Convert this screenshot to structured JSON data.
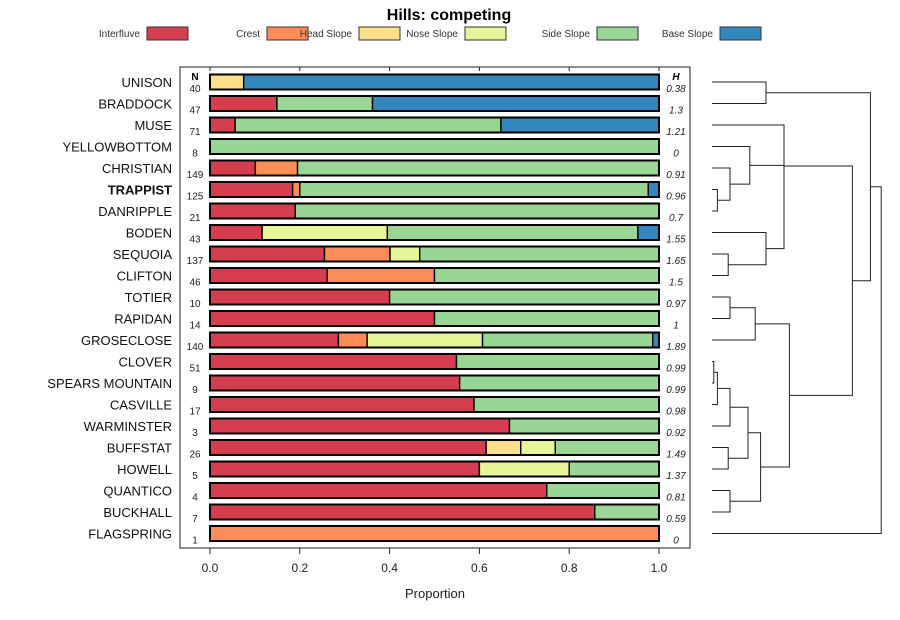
{
  "chart_data": {
    "type": "bar",
    "subtype": "stacked-horizontal-proportion",
    "title": "Hills: competing",
    "xlabel": "Proportion",
    "ylabel": "",
    "xlim": [
      0,
      1
    ],
    "x_ticks": [
      "0.0",
      "0.2",
      "0.4",
      "0.6",
      "0.8",
      "1.0"
    ],
    "x_tick_values": [
      0,
      0.2,
      0.4,
      0.6,
      0.8,
      1.0
    ],
    "n_header": "N",
    "h_header": "H",
    "legend_position": "top",
    "series": [
      {
        "name": "Interfluve",
        "color": "#D53E4F"
      },
      {
        "name": "Crest",
        "color": "#FC8D59"
      },
      {
        "name": "Head Slope",
        "color": "#FEE08B"
      },
      {
        "name": "Nose Slope",
        "color": "#E6F598"
      },
      {
        "name": "Side Slope",
        "color": "#99D594"
      },
      {
        "name": "Base Slope",
        "color": "#3288BD"
      }
    ],
    "categories": [
      "UNISON",
      "BRADDOCK",
      "MUSE",
      "YELLOWBOTTOM",
      "CHRISTIAN",
      "TRAPPIST",
      "DANRIPPLE",
      "BODEN",
      "SEQUOIA",
      "CLIFTON",
      "TOTIER",
      "RAPIDAN",
      "GROSECLOSE",
      "CLOVER",
      "SPEARS MOUNTAIN",
      "CASVILLE",
      "WARMINSTER",
      "BUFFSTAT",
      "HOWELL",
      "QUANTICO",
      "BUCKHALL",
      "FLAGSPRING"
    ],
    "highlight": "TRAPPIST",
    "rows": [
      {
        "label": "UNISON",
        "n": "40",
        "h": "0.38",
        "values": [
          0,
          0,
          0.075,
          0,
          0,
          0.925
        ]
      },
      {
        "label": "BRADDOCK",
        "n": "47",
        "h": "1.3",
        "values": [
          0.149,
          0,
          0,
          0,
          0.213,
          0.638
        ]
      },
      {
        "label": "MUSE",
        "n": "71",
        "h": "1.21",
        "values": [
          0.056,
          0,
          0,
          0,
          0.592,
          0.352
        ]
      },
      {
        "label": "YELLOWBOTTOM",
        "n": "8",
        "h": "0",
        "values": [
          0,
          0,
          0,
          0,
          1.0,
          0
        ]
      },
      {
        "label": "CHRISTIAN",
        "n": "149",
        "h": "0.91",
        "values": [
          0.101,
          0.094,
          0,
          0,
          0.805,
          0
        ]
      },
      {
        "label": "TRAPPIST",
        "n": "125",
        "h": "0.96",
        "values": [
          0.184,
          0.016,
          0,
          0,
          0.776,
          0.024
        ]
      },
      {
        "label": "DANRIPPLE",
        "n": "21",
        "h": "0.7",
        "values": [
          0.19,
          0,
          0,
          0,
          0.81,
          0
        ]
      },
      {
        "label": "BODEN",
        "n": "43",
        "h": "1.55",
        "values": [
          0.116,
          0,
          0,
          0.279,
          0.558,
          0.047
        ]
      },
      {
        "label": "SEQUOIA",
        "n": "137",
        "h": "1.65",
        "values": [
          0.255,
          0.146,
          0,
          0.066,
          0.533,
          0
        ]
      },
      {
        "label": "CLIFTON",
        "n": "46",
        "h": "1.5",
        "values": [
          0.261,
          0.239,
          0,
          0,
          0.5,
          0
        ]
      },
      {
        "label": "TOTIER",
        "n": "10",
        "h": "0.97",
        "values": [
          0.4,
          0,
          0,
          0,
          0.6,
          0
        ]
      },
      {
        "label": "RAPIDAN",
        "n": "14",
        "h": "1",
        "values": [
          0.5,
          0,
          0,
          0,
          0.5,
          0
        ]
      },
      {
        "label": "GROSECLOSE",
        "n": "140",
        "h": "1.89",
        "values": [
          0.286,
          0.064,
          0,
          0.257,
          0.379,
          0.014
        ]
      },
      {
        "label": "CLOVER",
        "n": "51",
        "h": "0.99",
        "values": [
          0.549,
          0,
          0,
          0,
          0.451,
          0
        ]
      },
      {
        "label": "SPEARS MOUNTAIN",
        "n": "9",
        "h": "0.99",
        "values": [
          0.556,
          0,
          0,
          0,
          0.444,
          0
        ]
      },
      {
        "label": "CASVILLE",
        "n": "17",
        "h": "0.98",
        "values": [
          0.588,
          0,
          0,
          0,
          0.412,
          0
        ]
      },
      {
        "label": "WARMINSTER",
        "n": "3",
        "h": "0.92",
        "values": [
          0.667,
          0,
          0,
          0,
          0.333,
          0
        ]
      },
      {
        "label": "BUFFSTAT",
        "n": "26",
        "h": "1.49",
        "values": [
          0.615,
          0,
          0.077,
          0.077,
          0.231,
          0
        ]
      },
      {
        "label": "HOWELL",
        "n": "5",
        "h": "1.37",
        "values": [
          0.6,
          0,
          0,
          0.2,
          0.2,
          0
        ]
      },
      {
        "label": "QUANTICO",
        "n": "4",
        "h": "0.81",
        "values": [
          0.75,
          0,
          0,
          0,
          0.25,
          0
        ]
      },
      {
        "label": "BUCKHALL",
        "n": "7",
        "h": "0.59",
        "values": [
          0.857,
          0,
          0,
          0,
          0.143,
          0
        ]
      },
      {
        "label": "FLAGSPRING",
        "n": "1",
        "h": "0",
        "values": [
          0,
          1.0,
          0,
          0,
          0,
          0
        ]
      }
    ],
    "dendrogram": {
      "description": "hierarchical clustering of the rows (right side), merge heights relative, 0 = leaves, 1 = root",
      "merges": [
        {
          "id": "m_unison_braddock",
          "children": [
            "UNISON",
            "BRADDOCK"
          ],
          "height": 0.3
        },
        {
          "id": "m_trappist_danripple",
          "children": [
            "TRAPPIST",
            "DANRIPPLE"
          ],
          "height": 0.03
        },
        {
          "id": "m_christian_td",
          "children": [
            "CHRISTIAN",
            "m_trappist_danripple"
          ],
          "height": 0.1
        },
        {
          "id": "m_yellow_ctd",
          "children": [
            "YELLOWBOTTOM",
            "m_christian_td"
          ],
          "height": 0.21
        },
        {
          "id": "m_sequoia_clifton",
          "children": [
            "SEQUOIA",
            "CLIFTON"
          ],
          "height": 0.09
        },
        {
          "id": "m_boden_sc",
          "children": [
            "BODEN",
            "m_sequoia_clifton"
          ],
          "height": 0.3
        },
        {
          "id": "m_ya_bsc",
          "children": [
            "m_yellow_ctd",
            "m_boden_sc"
          ],
          "height": 0.4
        },
        {
          "id": "m_muse_rest",
          "children": [
            "MUSE",
            "m_ya_bsc"
          ],
          "height": 0.4
        },
        {
          "id": "m_totier_rapidan",
          "children": [
            "TOTIER",
            "RAPIDAN"
          ],
          "height": 0.1
        },
        {
          "id": "m_tr_groseclose",
          "children": [
            "m_totier_rapidan",
            "GROSECLOSE"
          ],
          "height": 0.24
        },
        {
          "id": "m_clover_spears",
          "children": [
            "CLOVER",
            "SPEARS MOUNTAIN"
          ],
          "height": 0.01
        },
        {
          "id": "m_cs_casville",
          "children": [
            "m_clover_spears",
            "CASVILLE"
          ],
          "height": 0.03
        },
        {
          "id": "m_csc_warminster",
          "children": [
            "m_cs_casville",
            "WARMINSTER"
          ],
          "height": 0.1
        },
        {
          "id": "m_buffstat_howell",
          "children": [
            "BUFFSTAT",
            "HOWELL"
          ],
          "height": 0.09
        },
        {
          "id": "m_cscw_bh",
          "children": [
            "m_csc_warminster",
            "m_buffstat_howell"
          ],
          "height": 0.2
        },
        {
          "id": "m_quantico_buckhall",
          "children": [
            "QUANTICO",
            "BUCKHALL"
          ],
          "height": 0.1
        },
        {
          "id": "m_cscwbh_qb",
          "children": [
            "m_cscw_bh",
            "m_quantico_buckhall"
          ],
          "height": 0.27
        },
        {
          "id": "m_trg_rest",
          "children": [
            "m_tr_groseclose",
            "m_cscwbh_qb"
          ],
          "height": 0.43
        },
        {
          "id": "m_upper_lower",
          "children": [
            "m_muse_rest",
            "m_trg_rest"
          ],
          "height": 0.78
        },
        {
          "id": "m_ub_all",
          "children": [
            "m_unison_braddock",
            "m_upper_lower"
          ],
          "height": 0.88
        },
        {
          "id": "m_root",
          "children": [
            "m_ub_all",
            "FLAGSPRING"
          ],
          "height": 0.94
        }
      ]
    }
  }
}
